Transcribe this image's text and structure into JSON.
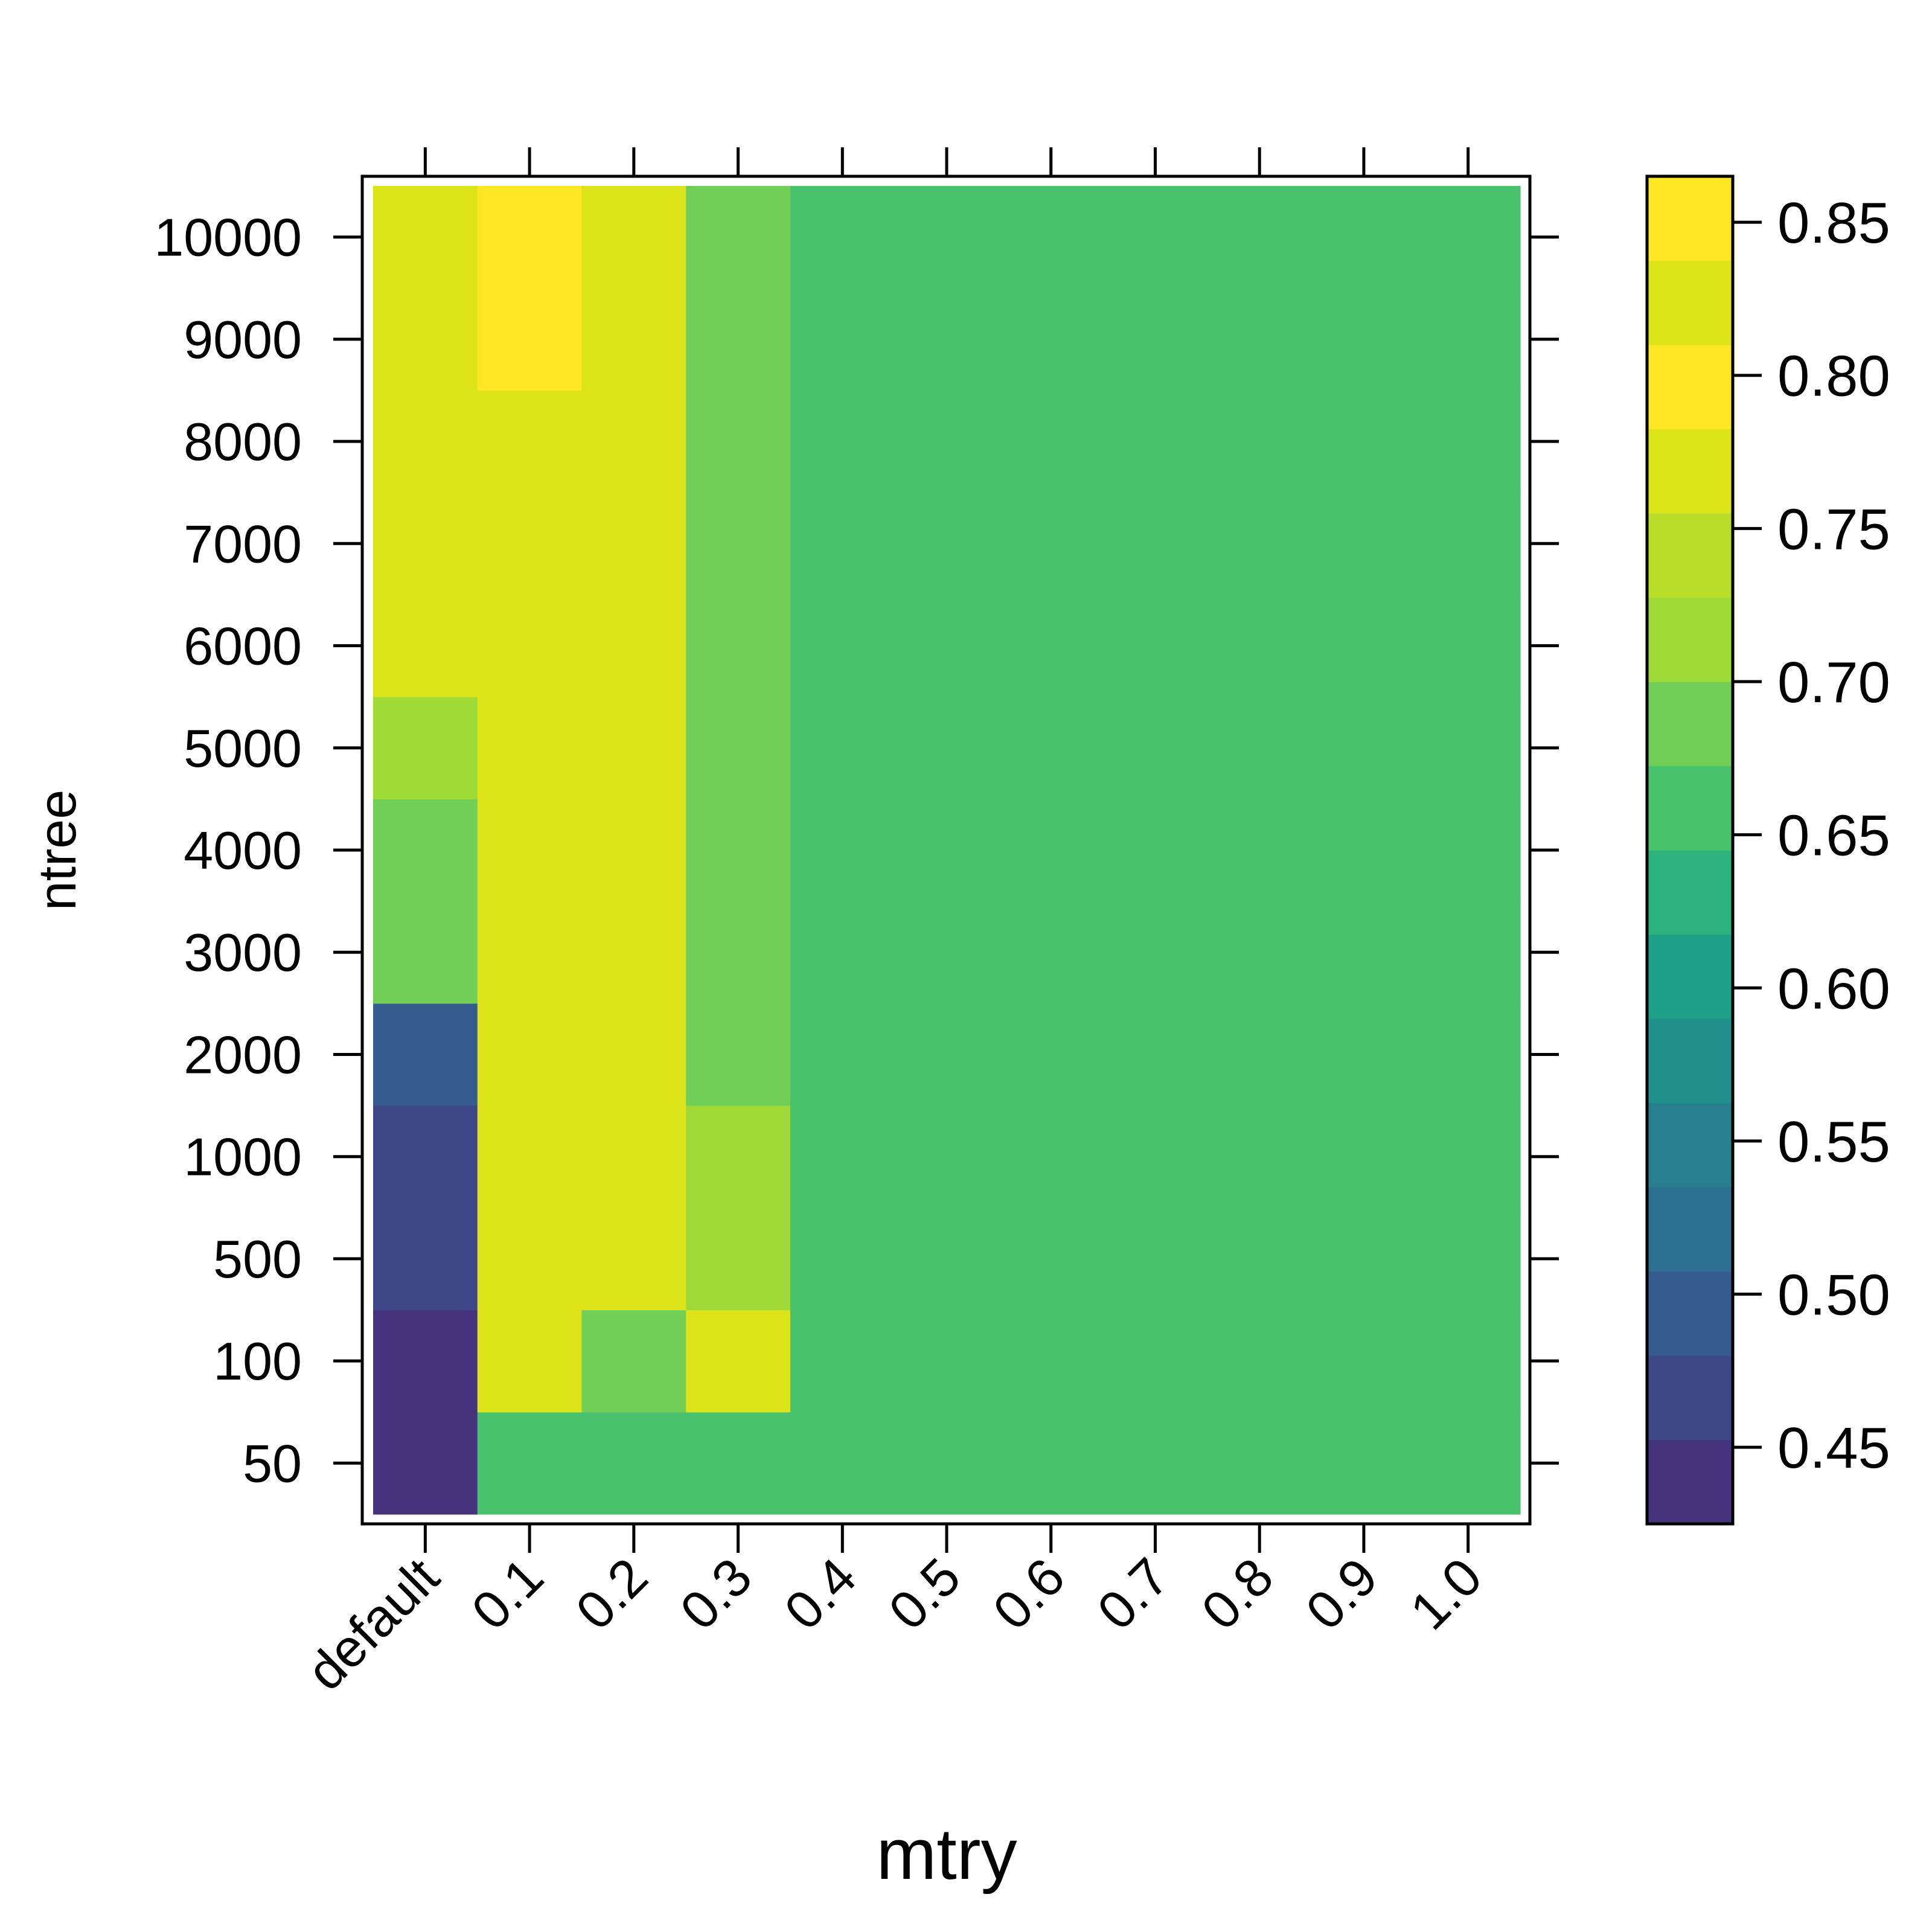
{
  "chart_data": {
    "type": "heatmap",
    "xlabel": "mtry",
    "ylabel": "ntree",
    "x_categories": [
      "default",
      "0.1",
      "0.2",
      "0.3",
      "0.4",
      "0.5",
      "0.6",
      "0.7",
      "0.8",
      "0.9",
      "1.0"
    ],
    "y_categories": [
      "50",
      "100",
      "500",
      "1000",
      "2000",
      "3000",
      "4000",
      "5000",
      "6000",
      "7000",
      "8000",
      "9000",
      "10000"
    ],
    "values": [
      [
        0.44,
        0.67,
        0.67,
        0.67,
        0.67,
        0.67,
        0.67,
        0.67,
        0.67,
        0.67,
        0.67
      ],
      [
        0.44,
        0.82,
        0.69,
        0.82,
        0.67,
        0.67,
        0.67,
        0.67,
        0.67,
        0.67,
        0.67
      ],
      [
        0.47,
        0.82,
        0.82,
        0.72,
        0.67,
        0.67,
        0.67,
        0.67,
        0.67,
        0.67,
        0.67
      ],
      [
        0.47,
        0.82,
        0.82,
        0.72,
        0.67,
        0.67,
        0.67,
        0.67,
        0.67,
        0.67,
        0.67
      ],
      [
        0.5,
        0.82,
        0.82,
        0.69,
        0.67,
        0.67,
        0.67,
        0.67,
        0.67,
        0.67,
        0.67
      ],
      [
        0.69,
        0.82,
        0.82,
        0.69,
        0.67,
        0.67,
        0.67,
        0.67,
        0.67,
        0.67,
        0.67
      ],
      [
        0.69,
        0.82,
        0.82,
        0.69,
        0.67,
        0.67,
        0.67,
        0.67,
        0.67,
        0.67,
        0.67
      ],
      [
        0.72,
        0.82,
        0.82,
        0.69,
        0.67,
        0.67,
        0.67,
        0.67,
        0.67,
        0.67,
        0.67
      ],
      [
        0.82,
        0.82,
        0.82,
        0.69,
        0.67,
        0.67,
        0.67,
        0.67,
        0.67,
        0.67,
        0.67
      ],
      [
        0.82,
        0.82,
        0.82,
        0.69,
        0.67,
        0.67,
        0.67,
        0.67,
        0.67,
        0.67,
        0.67
      ],
      [
        0.82,
        0.82,
        0.82,
        0.69,
        0.67,
        0.67,
        0.67,
        0.67,
        0.67,
        0.67,
        0.67
      ],
      [
        0.82,
        0.85,
        0.82,
        0.69,
        0.67,
        0.67,
        0.67,
        0.67,
        0.67,
        0.67,
        0.67
      ],
      [
        0.82,
        0.85,
        0.82,
        0.69,
        0.67,
        0.67,
        0.67,
        0.67,
        0.67,
        0.67,
        0.67
      ]
    ],
    "colorbar": {
      "range": [
        0.425,
        0.865
      ],
      "breaks": [
        0.425,
        0.4525,
        0.48,
        0.5075,
        0.535,
        0.5625,
        0.59,
        0.6175,
        0.645,
        0.6725,
        0.7,
        0.7275,
        0.755,
        0.7825,
        0.81,
        0.8375,
        0.865
      ],
      "colors": [
        "#46337E",
        "#3F4788",
        "#365C8D",
        "#2E6E8E",
        "#277F8E",
        "#21908C",
        "#1FA187",
        "#2DB27D",
        "#4AC16D",
        "#71CF57",
        "#A0DA39",
        "#B8DE29",
        "#DCE319",
        "#FDE725",
        "#DCE319",
        "#FDE725"
      ],
      "ticks": [
        "0.45",
        "0.50",
        "0.55",
        "0.60",
        "0.65",
        "0.70",
        "0.75",
        "0.80",
        "0.85"
      ]
    },
    "colormap": "viridis",
    "grid": false,
    "legend": "colorbar-right"
  }
}
